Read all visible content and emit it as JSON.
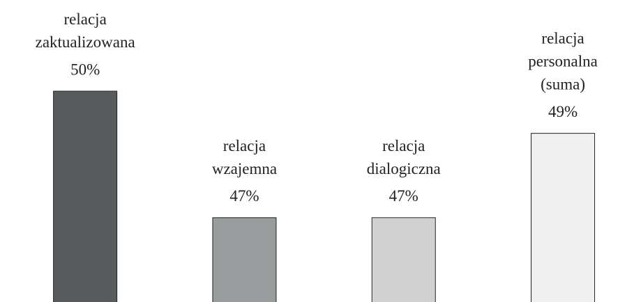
{
  "chart_data": {
    "type": "bar",
    "categories": [
      "relacja\nzaktualizowana",
      "relacja\nwzajemna",
      "relacja\ndialogiczna",
      "relacja\npersonalna\n(suma)"
    ],
    "values": [
      50,
      47,
      47,
      49
    ],
    "value_labels": [
      "50%",
      "47%",
      "47%",
      "49%"
    ],
    "colors": [
      "#575b5b",
      "#9a9d9d",
      "#d0d1d0",
      "#f0f0f0"
    ],
    "ylim": [
      45,
      50
    ]
  }
}
